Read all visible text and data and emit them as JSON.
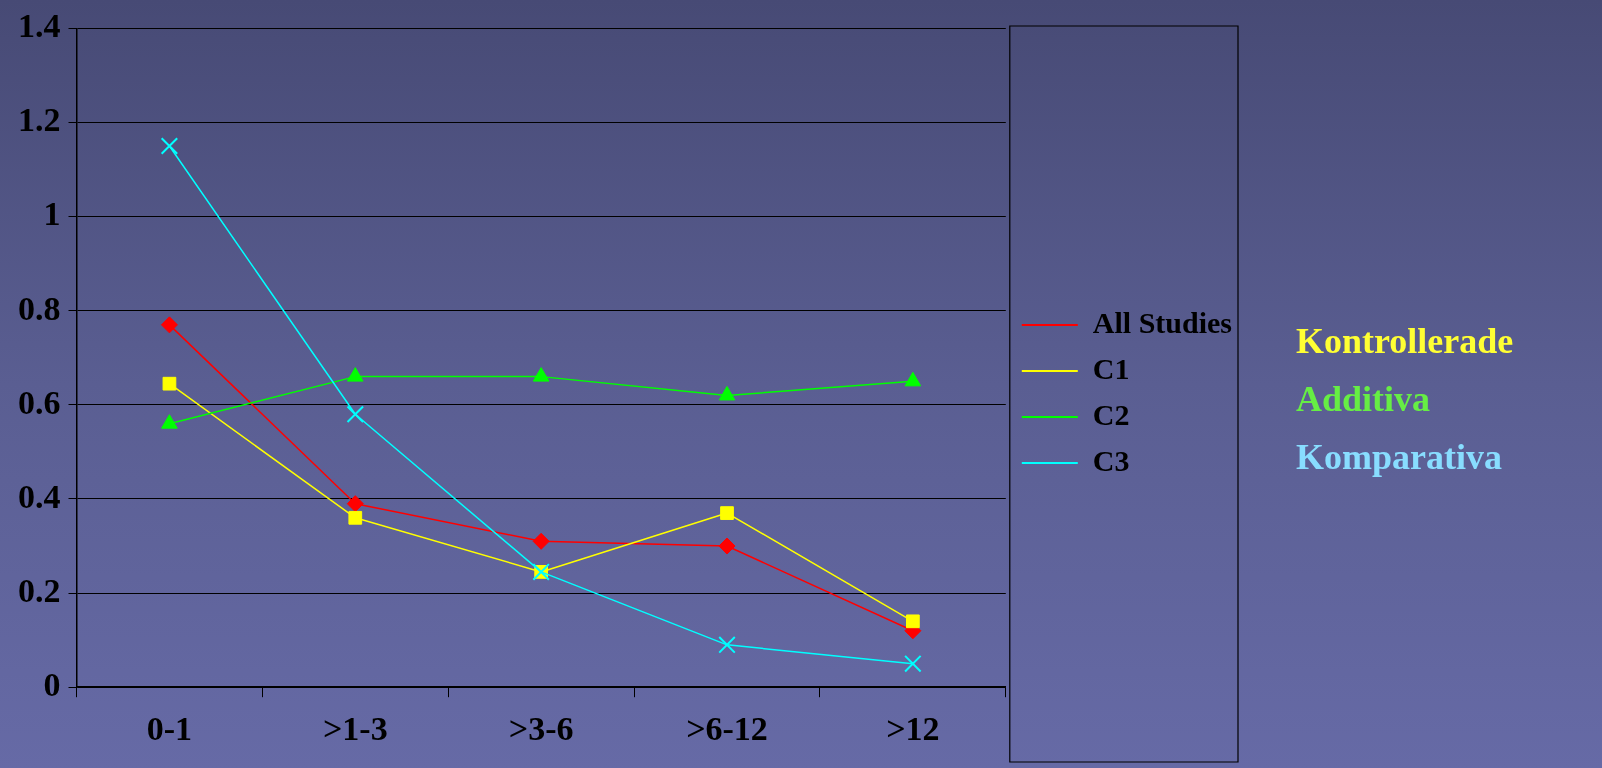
{
  "chart_data": {
    "type": "line",
    "categories": [
      "0-1",
      ">1-3",
      ">3-6",
      ">6-12",
      ">12"
    ],
    "series": [
      {
        "name": "All Studies",
        "color": "#ff0000",
        "marker": "diamond",
        "values": [
          0.77,
          0.39,
          0.31,
          0.3,
          0.12
        ]
      },
      {
        "name": "C1",
        "color": "#ffff00",
        "marker": "square",
        "values": [
          0.645,
          0.36,
          0.245,
          0.37,
          0.14
        ]
      },
      {
        "name": "C2",
        "color": "#00ff00",
        "marker": "triangle",
        "values": [
          0.56,
          0.66,
          0.66,
          0.62,
          0.65
        ]
      },
      {
        "name": "C3",
        "color": "#00ffff",
        "marker": "cross",
        "values": [
          1.15,
          0.58,
          0.245,
          0.09,
          0.05
        ]
      }
    ],
    "ylim": [
      0,
      1.4
    ],
    "yticks": [
      0,
      0.2,
      0.4,
      0.6,
      0.8,
      1,
      1.2,
      1.4
    ],
    "grid": "y",
    "legend": "right",
    "line_style": "solid",
    "annotations": [
      "Kontrollerade",
      "Additiva",
      "Komparativa"
    ]
  }
}
